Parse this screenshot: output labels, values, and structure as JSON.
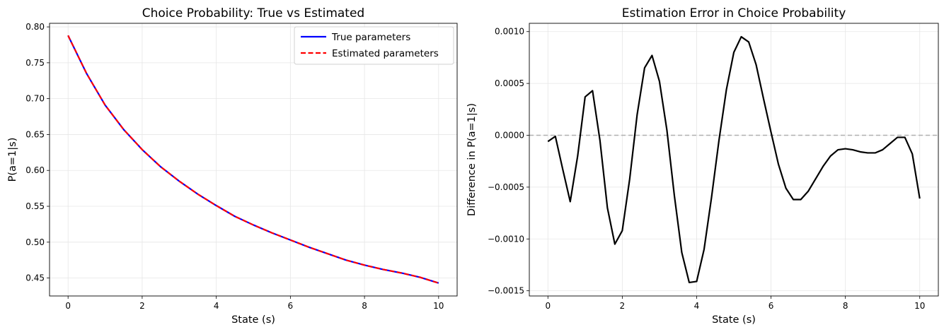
{
  "chart_data": [
    {
      "type": "line",
      "title": "Choice Probability: True vs Estimated",
      "xlabel": "State (s)",
      "ylabel": "P(a=1|s)",
      "xlim": [
        -0.5,
        10.5
      ],
      "ylim": [
        0.425,
        0.805
      ],
      "xticks": [
        0,
        2,
        4,
        6,
        8,
        10
      ],
      "xtick_labels": [
        "0",
        "2",
        "4",
        "6",
        "8",
        "10"
      ],
      "yticks": [
        0.45,
        0.5,
        0.55,
        0.6,
        0.65,
        0.7,
        0.75,
        0.8
      ],
      "ytick_labels": [
        "0.45",
        "0.50",
        "0.55",
        "0.60",
        "0.65",
        "0.70",
        "0.75",
        "0.80"
      ],
      "grid": true,
      "legend": "top-right",
      "x": [
        0,
        0.5,
        1,
        1.5,
        2,
        2.5,
        3,
        3.5,
        4,
        4.5,
        5,
        5.5,
        6,
        6.5,
        7,
        7.5,
        8,
        8.5,
        9,
        9.5,
        10
      ],
      "series": [
        {
          "name": "True parameters",
          "color": "#0000ff",
          "style": "solid",
          "values": [
            0.788,
            0.735,
            0.691,
            0.657,
            0.629,
            0.605,
            0.585,
            0.567,
            0.551,
            0.536,
            0.524,
            0.513,
            0.503,
            0.493,
            0.484,
            0.475,
            0.468,
            0.462,
            0.457,
            0.451,
            0.443
          ]
        },
        {
          "name": "Estimated parameters",
          "color": "#ff0000",
          "style": "dashed",
          "values": [
            0.788,
            0.735,
            0.691,
            0.657,
            0.629,
            0.605,
            0.585,
            0.567,
            0.551,
            0.536,
            0.524,
            0.513,
            0.503,
            0.493,
            0.484,
            0.475,
            0.468,
            0.462,
            0.457,
            0.451,
            0.443
          ]
        }
      ]
    },
    {
      "type": "line",
      "title": "Estimation Error in Choice Probability",
      "xlabel": "State (s)",
      "ylabel": "Difference in P(a=1|s)",
      "xlim": [
        -0.5,
        10.5
      ],
      "ylim": [
        -0.00155,
        0.00108
      ],
      "xticks": [
        0,
        2,
        4,
        6,
        8,
        10
      ],
      "xtick_labels": [
        "0",
        "2",
        "4",
        "6",
        "8",
        "10"
      ],
      "yticks": [
        -0.0015,
        -0.001,
        -0.0005,
        0,
        0.0005,
        0.001
      ],
      "ytick_labels": [
        "−0.0015",
        "−0.0010",
        "−0.0005",
        "0.0000",
        "0.0005",
        "0.0010"
      ],
      "grid": true,
      "reference_line": {
        "y": 0,
        "color": "#b0b0b0",
        "style": "dashed"
      },
      "series": [
        {
          "color": "#000000",
          "style": "solid",
          "x": [
            0,
            0.2,
            0.4,
            0.6,
            0.8,
            1.0,
            1.2,
            1.4,
            1.6,
            1.8,
            2.0,
            2.2,
            2.4,
            2.6,
            2.8,
            3.0,
            3.2,
            3.4,
            3.6,
            3.8,
            4.0,
            4.2,
            4.4,
            4.6,
            4.8,
            5.0,
            5.2,
            5.4,
            5.6,
            5.8,
            6.0,
            6.2,
            6.4,
            6.6,
            6.8,
            7.0,
            7.2,
            7.4,
            7.6,
            7.8,
            8.0,
            8.2,
            8.4,
            8.6,
            8.8,
            9.0,
            9.2,
            9.4,
            9.6,
            9.8,
            10.0
          ],
          "values": [
            -6e-05,
            -1e-05,
            -0.00033,
            -0.00064,
            -0.0002,
            0.00037,
            0.00043,
            -5e-05,
            -0.0007,
            -0.00105,
            -0.00092,
            -0.00042,
            0.0002,
            0.00065,
            0.00077,
            0.00052,
            5e-05,
            -0.00058,
            -0.00113,
            -0.00142,
            -0.00141,
            -0.0011,
            -0.0006,
            -5e-05,
            0.00044,
            0.0008,
            0.00095,
            0.0009,
            0.00068,
            0.00035,
            3e-05,
            -0.00028,
            -0.00051,
            -0.00062,
            -0.00062,
            -0.00054,
            -0.00042,
            -0.0003,
            -0.0002,
            -0.00014,
            -0.00013,
            -0.00014,
            -0.00016,
            -0.00017,
            -0.00017,
            -0.00014,
            -8e-05,
            -2e-05,
            -2e-05,
            -0.00018,
            -0.00061
          ]
        }
      ]
    }
  ]
}
